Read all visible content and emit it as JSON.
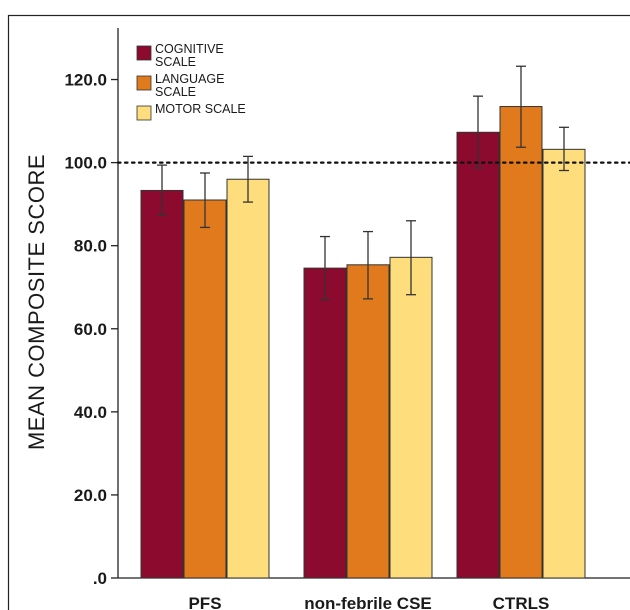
{
  "chart_data": {
    "type": "bar",
    "categories": [
      "PFS",
      "non-febrile CSE",
      "CTRLS"
    ],
    "series": [
      {
        "name": "COGNITIVE SCALE",
        "color": "#8b0a2e",
        "values": [
          93.3,
          74.6,
          107.3
        ],
        "error_low": [
          87.4,
          67.0,
          98.7
        ],
        "error_high": [
          99.4,
          82.2,
          116.0
        ]
      },
      {
        "name": "LANGUAGE SCALE",
        "color": "#e07a1c",
        "values": [
          91.0,
          75.4,
          113.5
        ],
        "error_low": [
          84.4,
          67.2,
          103.7
        ],
        "error_high": [
          97.5,
          83.4,
          123.2
        ]
      },
      {
        "name": "MOTOR SCALE",
        "color": "#fedd7c",
        "values": [
          96.0,
          77.2,
          103.2
        ],
        "error_low": [
          90.5,
          68.2,
          98.1
        ],
        "error_high": [
          101.5,
          86.0,
          108.5
        ]
      }
    ],
    "legend_lines": [
      [
        "COGNITIVE",
        "SCALE"
      ],
      [
        "LANGUAGE",
        "SCALE"
      ],
      [
        "MOTOR SCALE"
      ]
    ],
    "ylabel": "MEAN COMPOSITE SCORE",
    "xlabel": "",
    "ylim": [
      0,
      130
    ],
    "yticks": [
      0,
      20,
      40,
      60,
      80,
      100,
      120
    ],
    "ytick_labels": [
      ".0",
      "20.0",
      "40.0",
      "60.0",
      "80.0",
      "100.0",
      "120.0"
    ],
    "reference_line": 100,
    "legend_position": "top-left",
    "grid": false
  }
}
